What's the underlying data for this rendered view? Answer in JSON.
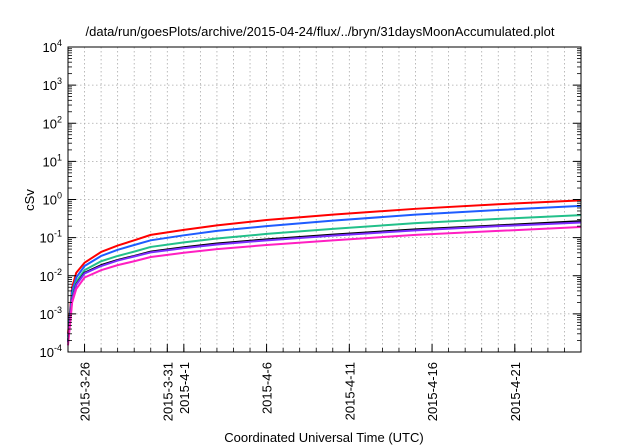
{
  "chart_data": {
    "type": "line",
    "title": "/data/run/goesPlots/archive/2015-04-24/flux/../bryn/31daysMoonAccumulated.plot",
    "xlabel": "Coordinated Universal Time (UTC)",
    "ylabel": "cSv",
    "x_range": [
      "2015-03-25",
      "2015-04-25"
    ],
    "x_tick_labels": [
      "2015-3-26",
      "2015-3-31",
      "2015-4-1",
      "2015-4-6",
      "2015-4-11",
      "2015-4-16",
      "2015-4-21"
    ],
    "x_ticks": [
      "2015-03-26",
      "2015-03-31",
      "2015-04-01",
      "2015-04-06",
      "2015-04-11",
      "2015-04-16",
      "2015-04-21"
    ],
    "yscale": "log",
    "ylim": [
      0.0001,
      10000
    ],
    "y_ticks": [
      {
        "value": 0.0001,
        "base": "10",
        "exp": "-4"
      },
      {
        "value": 0.001,
        "base": "10",
        "exp": "-3"
      },
      {
        "value": 0.01,
        "base": "10",
        "exp": "-2"
      },
      {
        "value": 0.1,
        "base": "10",
        "exp": "-1"
      },
      {
        "value": 1,
        "base": "10",
        "exp": "0"
      },
      {
        "value": 10,
        "base": "10",
        "exp": "1"
      },
      {
        "value": 100,
        "base": "10",
        "exp": "2"
      },
      {
        "value": 1000,
        "base": "10",
        "exp": "3"
      },
      {
        "value": 10000,
        "base": "10",
        "exp": "4"
      }
    ],
    "grid": true,
    "grid_style": "dotted",
    "legend": "none",
    "series": [
      {
        "color": "#ff0000",
        "points": [
          [
            "2015-03-25",
            0.0003
          ],
          [
            "2015-03-25T06:00",
            0.005
          ],
          [
            "2015-03-25T12:00",
            0.012
          ],
          [
            "2015-03-26",
            0.022
          ],
          [
            "2015-03-27",
            0.042
          ],
          [
            "2015-03-28",
            0.062
          ],
          [
            "2015-03-29",
            0.085
          ],
          [
            "2015-03-30",
            0.118
          ],
          [
            "2015-04-01",
            0.16
          ],
          [
            "2015-04-03",
            0.21
          ],
          [
            "2015-04-06",
            0.29
          ],
          [
            "2015-04-10",
            0.4
          ],
          [
            "2015-04-15",
            0.57
          ],
          [
            "2015-04-20",
            0.75
          ],
          [
            "2015-04-25",
            0.95
          ]
        ]
      },
      {
        "color": "#1e5cff",
        "points": [
          [
            "2015-03-25",
            0.00025
          ],
          [
            "2015-03-25T06:00",
            0.004
          ],
          [
            "2015-03-25T12:00",
            0.009
          ],
          [
            "2015-03-26",
            0.018
          ],
          [
            "2015-03-27",
            0.033
          ],
          [
            "2015-03-28",
            0.048
          ],
          [
            "2015-03-29",
            0.064
          ],
          [
            "2015-03-30",
            0.085
          ],
          [
            "2015-04-01",
            0.115
          ],
          [
            "2015-04-03",
            0.15
          ],
          [
            "2015-04-06",
            0.2
          ],
          [
            "2015-04-10",
            0.28
          ],
          [
            "2015-04-15",
            0.4
          ],
          [
            "2015-04-20",
            0.53
          ],
          [
            "2015-04-25",
            0.68
          ]
        ]
      },
      {
        "color": "#22c08a",
        "points": [
          [
            "2015-03-25",
            0.0002
          ],
          [
            "2015-03-25T06:00",
            0.003
          ],
          [
            "2015-03-25T12:00",
            0.007
          ],
          [
            "2015-03-26",
            0.014
          ],
          [
            "2015-03-27",
            0.024
          ],
          [
            "2015-03-28",
            0.033
          ],
          [
            "2015-03-29",
            0.043
          ],
          [
            "2015-03-30",
            0.057
          ],
          [
            "2015-04-01",
            0.075
          ],
          [
            "2015-04-03",
            0.095
          ],
          [
            "2015-04-06",
            0.125
          ],
          [
            "2015-04-10",
            0.17
          ],
          [
            "2015-04-15",
            0.24
          ],
          [
            "2015-04-20",
            0.31
          ],
          [
            "2015-04-25",
            0.39
          ]
        ]
      },
      {
        "color": "#000000",
        "points": [
          [
            "2015-03-25",
            0.00018
          ],
          [
            "2015-03-25T06:00",
            0.0025
          ],
          [
            "2015-03-25T12:00",
            0.006
          ],
          [
            "2015-03-26",
            0.012
          ],
          [
            "2015-03-27",
            0.019
          ],
          [
            "2015-03-28",
            0.026
          ],
          [
            "2015-03-29",
            0.033
          ],
          [
            "2015-03-30",
            0.043
          ],
          [
            "2015-04-01",
            0.056
          ],
          [
            "2015-04-03",
            0.07
          ],
          [
            "2015-04-06",
            0.09
          ],
          [
            "2015-04-10",
            0.12
          ],
          [
            "2015-04-15",
            0.165
          ],
          [
            "2015-04-20",
            0.21
          ],
          [
            "2015-04-25",
            0.27
          ]
        ]
      },
      {
        "color": "#7b2cff",
        "points": [
          [
            "2015-03-25",
            0.00018
          ],
          [
            "2015-03-25T06:00",
            0.0024
          ],
          [
            "2015-03-25T12:00",
            0.0058
          ],
          [
            "2015-03-26",
            0.0115
          ],
          [
            "2015-03-27",
            0.018
          ],
          [
            "2015-03-28",
            0.025
          ],
          [
            "2015-03-29",
            0.032
          ],
          [
            "2015-03-30",
            0.041
          ],
          [
            "2015-04-01",
            0.053
          ],
          [
            "2015-04-03",
            0.066
          ],
          [
            "2015-04-06",
            0.085
          ],
          [
            "2015-04-10",
            0.113
          ],
          [
            "2015-04-15",
            0.155
          ],
          [
            "2015-04-20",
            0.2
          ],
          [
            "2015-04-25",
            0.25
          ]
        ]
      },
      {
        "color": "#ff1fc2",
        "points": [
          [
            "2015-03-25",
            0.00015
          ],
          [
            "2015-03-25T06:00",
            0.002
          ],
          [
            "2015-03-25T12:00",
            0.0045
          ],
          [
            "2015-03-26",
            0.009
          ],
          [
            "2015-03-27",
            0.014
          ],
          [
            "2015-03-28",
            0.019
          ],
          [
            "2015-03-29",
            0.024
          ],
          [
            "2015-03-30",
            0.031
          ],
          [
            "2015-04-01",
            0.04
          ],
          [
            "2015-04-03",
            0.05
          ],
          [
            "2015-04-06",
            0.064
          ],
          [
            "2015-04-10",
            0.085
          ],
          [
            "2015-04-15",
            0.118
          ],
          [
            "2015-04-20",
            0.15
          ],
          [
            "2015-04-25",
            0.19
          ]
        ]
      }
    ]
  }
}
